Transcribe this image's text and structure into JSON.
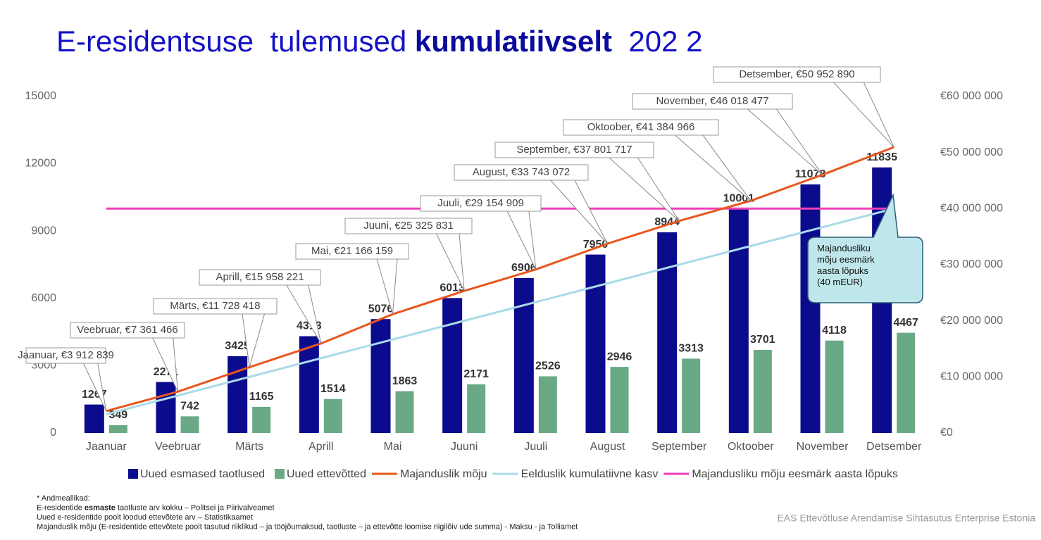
{
  "chart_data": {
    "type": "bar",
    "title": [
      "E-residentsuse  tulemused ",
      "kumulatiivselt",
      "  202 2"
    ],
    "categories": [
      "Jaanuar",
      "Veebruar",
      "Märts",
      "Aprill",
      "Mai",
      "Juuni",
      "Juuli",
      "August",
      "September",
      "Oktoober",
      "November",
      "Detsember"
    ],
    "ylim": [
      0,
      16000
    ],
    "yticks": [
      0,
      3000,
      6000,
      9000,
      12000,
      15000
    ],
    "y2lim": [
      0,
      64000000
    ],
    "y2ticks": [
      {
        "value": 0,
        "label": "€0"
      },
      {
        "value": 10000000,
        "label": "€10 000 000"
      },
      {
        "value": 20000000,
        "label": "€20 000 000"
      },
      {
        "value": 30000000,
        "label": "€30 000 000"
      },
      {
        "value": 40000000,
        "label": "€40 000 000"
      },
      {
        "value": 50000000,
        "label": "€50 000 000"
      },
      {
        "value": 60000000,
        "label": "€60 000 000"
      }
    ],
    "series": [
      {
        "name": "Uued esmased taotlused",
        "type": "bar",
        "color": "#0b0b8e",
        "values": [
          1267,
          2271,
          3425,
          4313,
          5076,
          6013,
          6906,
          7950,
          8944,
          10001,
          11078,
          11835
        ]
      },
      {
        "name": "Uued ettevõtted",
        "type": "bar",
        "color": "#6aa985",
        "values": [
          349,
          742,
          1165,
          1514,
          1863,
          2171,
          2526,
          2946,
          3313,
          3701,
          4118,
          4467
        ]
      },
      {
        "name": "Majanduslik mõju",
        "type": "line",
        "axis": "y2",
        "color": "#e9561d",
        "values": [
          3912839,
          7361466,
          11728418,
          15958221,
          21166159,
          25325831,
          29154909,
          33743072,
          37801717,
          41384966,
          46018477,
          50952890
        ],
        "value_labels": [
          "Jaanuar, €3 912 839",
          "Veebruar, €7 361 466",
          "Märts, €11 728 418",
          "Aprill, €15 958 221",
          "Mai, €21 166 159",
          "Juuni, €25 325 831",
          "Juuli, €29 154 909",
          "August, €33 743 072",
          "September, €37 801 717",
          "Oktoober, €41 384 966",
          "November, €46 018 477",
          "Detsember, €50 952 890"
        ]
      },
      {
        "name": "Eelduslik kumulatiivne kasv",
        "type": "line",
        "axis": "y2",
        "color": "#a9dbe8",
        "values": [
          3333333,
          6666667,
          10000000,
          13333333,
          16666667,
          20000000,
          23333333,
          26666667,
          30000000,
          33333333,
          36666667,
          40000000
        ]
      },
      {
        "name": "Majandusliku mõju eesmärk aasta lõpuks",
        "type": "line",
        "axis": "y2",
        "color": "#ee3fb8",
        "values": [
          40000000,
          40000000,
          40000000,
          40000000,
          40000000,
          40000000,
          40000000,
          40000000,
          40000000,
          40000000,
          40000000,
          40000000
        ]
      }
    ],
    "annotation": [
      "Majandusliku",
      "mõju eesmärk",
      "aasta lõpuks",
      "(40 mEUR)"
    ],
    "notes": [
      "* Andmeallikad:",
      [
        "E-residentide ",
        "esmaste",
        " taotluste arv kokku    – Politsei ja Piirivalveamet"
      ],
      "Uued e-residentide poolt loodud ettevõtete arv      – Statistikaamet",
      "Majanduslik mõju (E-residentide ettevõtete poolt tasutud riiklikud  – ja tööjõumaksud, taotluste  – ja ettevõtte loomise riigilõiv  ude summa)  - Maksu - ja Tolliamet"
    ],
    "footer": "EAS  Ettevõtluse Arendamise Sihtasutus   Enterprise Estonia"
  }
}
